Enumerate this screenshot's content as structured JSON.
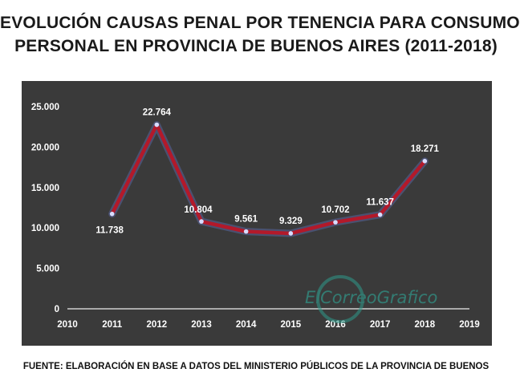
{
  "header": {
    "title_line1": "EVOLUCIÓN CAUSAS PENAL POR TENENCIA PARA CONSUMO",
    "title_line2": "PERSONAL EN PROVINCIA DE BUENOS AIRES (2011-2018)"
  },
  "footer": {
    "source": "FUENTE: ELABORACIÓN EN BASE A DATOS DEL MINISTERIO PÚBLICOS DE LA PROVINCIA DE BUENOS"
  },
  "watermark": {
    "text": "ElCorreoGrafico"
  },
  "colors": {
    "background": "#3a3a3a",
    "line": "#b3192a",
    "text": "#ffffff"
  },
  "chart_data": {
    "type": "line",
    "title": "EVOLUCIÓN CAUSAS PENAL POR TENENCIA PARA CONSUMO PERSONAL EN PROVINCIA DE BUENOS AIRES (2011-2018)",
    "xlabel": "",
    "ylabel": "",
    "xlim": [
      2010,
      2019
    ],
    "ylim": [
      0,
      25000
    ],
    "x_ticks": [
      "2010",
      "2011",
      "2012",
      "2013",
      "2014",
      "2015",
      "2016",
      "2017",
      "2018",
      "2019"
    ],
    "y_ticks": [
      "0",
      "5.000",
      "10.000",
      "15.000",
      "20.000",
      "25.000"
    ],
    "grid": false,
    "legend": "none",
    "x": [
      2011,
      2012,
      2013,
      2014,
      2015,
      2016,
      2017,
      2018
    ],
    "series": [
      {
        "values": [
          11738,
          22764,
          10804,
          9561,
          9329,
          10702,
          11637,
          18271
        ],
        "labels": [
          "11.738",
          "22.764",
          "10.804",
          "9.561",
          "9.329",
          "10.702",
          "11.637",
          "18.271"
        ]
      }
    ]
  }
}
